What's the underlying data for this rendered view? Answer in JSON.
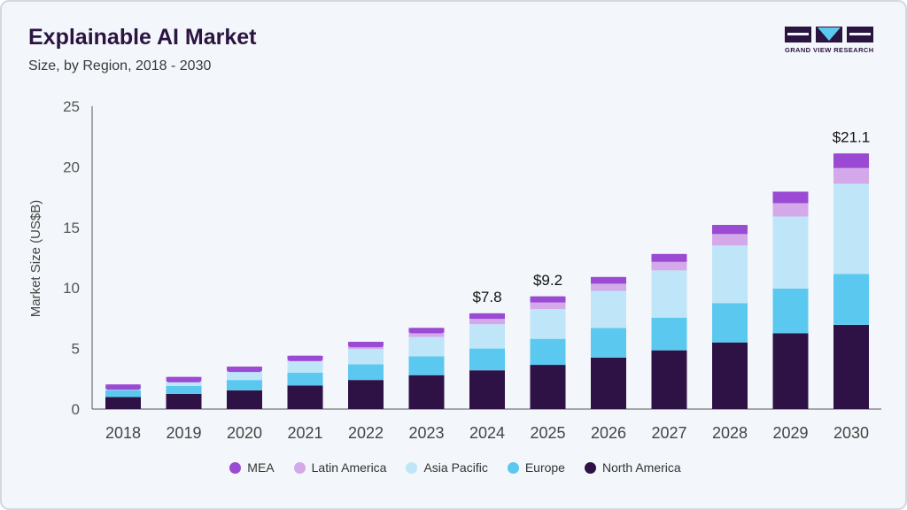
{
  "header": {
    "title": "Explainable AI Market",
    "subtitle": "Size, by Region, 2018 - 2030"
  },
  "logo": {
    "text": "GRAND VIEW RESEARCH",
    "colors": {
      "dark": "#2a1440",
      "accent": "#5bc8f0"
    }
  },
  "chart_data": {
    "type": "bar",
    "stacked": true,
    "categories": [
      "2018",
      "2019",
      "2020",
      "2021",
      "2022",
      "2023",
      "2024",
      "2025",
      "2026",
      "2027",
      "2028",
      "2029",
      "2030"
    ],
    "ylabel": "Market Size (US$B)",
    "xlabel": "",
    "ylim": [
      0,
      25
    ],
    "yticks": [
      0,
      5,
      10,
      15,
      20,
      25
    ],
    "grid": false,
    "legend_position": "bottom",
    "series": [
      {
        "name": "North America",
        "color": "#2e1245",
        "values": [
          1.0,
          1.25,
          1.55,
          1.95,
          2.4,
          2.8,
          3.2,
          3.65,
          4.25,
          4.85,
          5.5,
          6.25,
          6.95
        ]
      },
      {
        "name": "Europe",
        "color": "#5bc8f0",
        "values": [
          0.55,
          0.65,
          0.85,
          1.05,
          1.3,
          1.55,
          1.8,
          2.15,
          2.45,
          2.7,
          3.25,
          3.7,
          4.2
        ]
      },
      {
        "name": "Asia Pacific",
        "color": "#bfe6f8",
        "values": [
          0.35,
          0.5,
          0.75,
          0.95,
          1.25,
          1.6,
          2.0,
          2.45,
          3.05,
          3.9,
          4.75,
          5.95,
          7.45
        ]
      },
      {
        "name": "Latin America",
        "color": "#d3a9e9",
        "values": [
          0.08,
          0.15,
          0.2,
          0.25,
          0.3,
          0.38,
          0.45,
          0.55,
          0.6,
          0.7,
          0.95,
          1.1,
          1.3
        ]
      },
      {
        "name": "MEA",
        "color": "#9b4ad3",
        "values": [
          0.05,
          0.1,
          0.15,
          0.2,
          0.3,
          0.37,
          0.45,
          0.5,
          0.55,
          0.65,
          0.75,
          0.95,
          1.2
        ]
      }
    ],
    "legend_order": [
      "MEA",
      "Latin America",
      "Asia Pacific",
      "Europe",
      "North America"
    ],
    "annotations": [
      {
        "category": "2024",
        "text": "$7.8"
      },
      {
        "category": "2025",
        "text": "$9.2"
      },
      {
        "category": "2030",
        "text": "$21.1"
      }
    ]
  }
}
